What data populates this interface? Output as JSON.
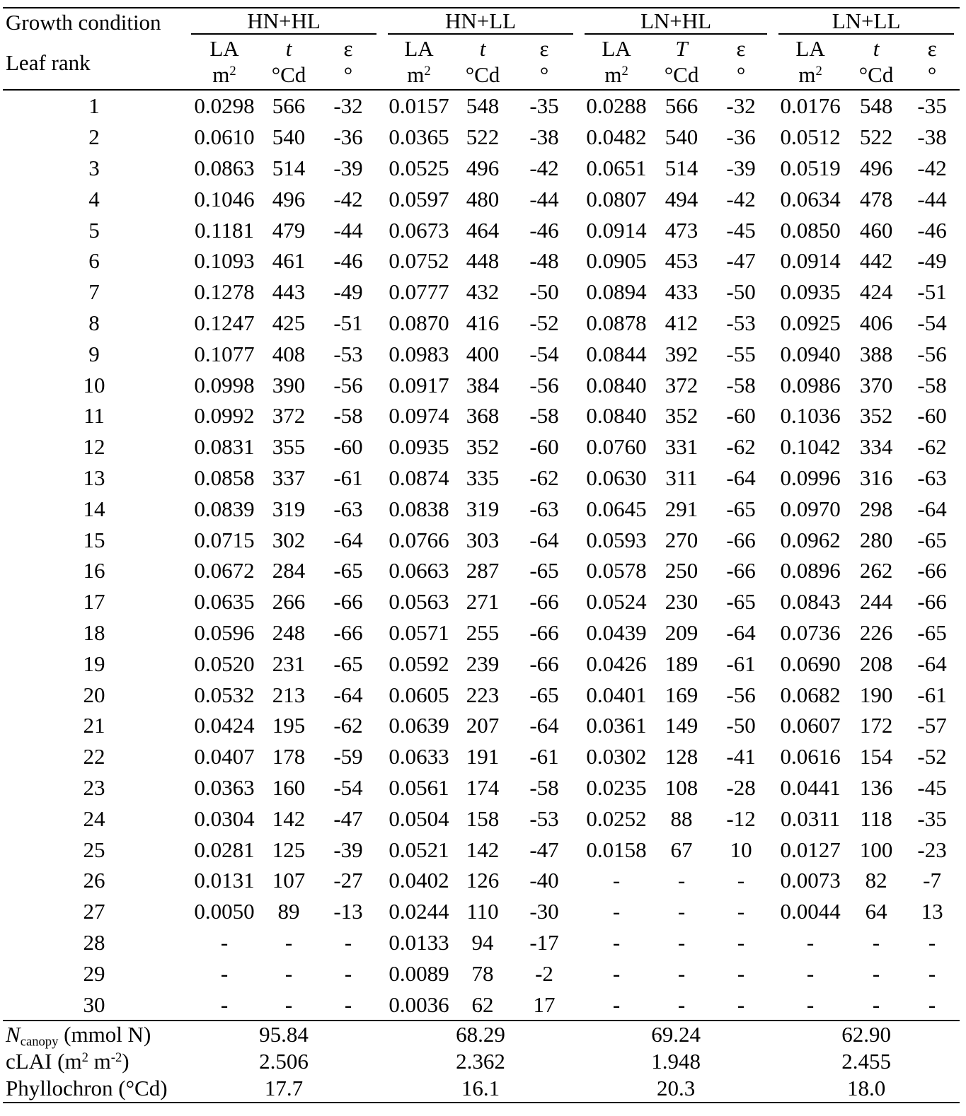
{
  "header": {
    "growth_condition_label": "Growth condition",
    "leaf_rank_label": "Leaf rank",
    "groups": [
      {
        "name": "HN+HL",
        "cols": [
          {
            "sym": "LA",
            "italic": false,
            "unit_base": "m",
            "unit_sup": "2"
          },
          {
            "sym": "t",
            "italic": true,
            "unit_base": "°Cd",
            "unit_sup": ""
          },
          {
            "sym": "ε",
            "italic": false,
            "unit_base": "°",
            "unit_sup": ""
          }
        ]
      },
      {
        "name": "HN+LL",
        "cols": [
          {
            "sym": "LA",
            "italic": false,
            "unit_base": "m",
            "unit_sup": "2"
          },
          {
            "sym": "t",
            "italic": true,
            "unit_base": "°Cd",
            "unit_sup": ""
          },
          {
            "sym": "ε",
            "italic": false,
            "unit_base": "°",
            "unit_sup": ""
          }
        ]
      },
      {
        "name": "LN+HL",
        "cols": [
          {
            "sym": "LA",
            "italic": false,
            "unit_base": "m",
            "unit_sup": "2"
          },
          {
            "sym": "T",
            "italic": true,
            "unit_base": "°Cd",
            "unit_sup": ""
          },
          {
            "sym": "ε",
            "italic": false,
            "unit_base": "°",
            "unit_sup": ""
          }
        ]
      },
      {
        "name": "LN+LL",
        "cols": [
          {
            "sym": "LA",
            "italic": false,
            "unit_base": "m",
            "unit_sup": "2"
          },
          {
            "sym": "t",
            "italic": true,
            "unit_base": "°Cd",
            "unit_sup": ""
          },
          {
            "sym": "ε",
            "italic": false,
            "unit_base": "°",
            "unit_sup": ""
          }
        ]
      }
    ]
  },
  "rows": [
    [
      "1",
      "0.0298",
      "566",
      "-32",
      "0.0157",
      "548",
      "-35",
      "0.0288",
      "566",
      "-32",
      "0.0176",
      "548",
      "-35"
    ],
    [
      "2",
      "0.0610",
      "540",
      "-36",
      "0.0365",
      "522",
      "-38",
      "0.0482",
      "540",
      "-36",
      "0.0512",
      "522",
      "-38"
    ],
    [
      "3",
      "0.0863",
      "514",
      "-39",
      "0.0525",
      "496",
      "-42",
      "0.0651",
      "514",
      "-39",
      "0.0519",
      "496",
      "-42"
    ],
    [
      "4",
      "0.1046",
      "496",
      "-42",
      "0.0597",
      "480",
      "-44",
      "0.0807",
      "494",
      "-42",
      "0.0634",
      "478",
      "-44"
    ],
    [
      "5",
      "0.1181",
      "479",
      "-44",
      "0.0673",
      "464",
      "-46",
      "0.0914",
      "473",
      "-45",
      "0.0850",
      "460",
      "-46"
    ],
    [
      "6",
      "0.1093",
      "461",
      "-46",
      "0.0752",
      "448",
      "-48",
      "0.0905",
      "453",
      "-47",
      "0.0914",
      "442",
      "-49"
    ],
    [
      "7",
      "0.1278",
      "443",
      "-49",
      "0.0777",
      "432",
      "-50",
      "0.0894",
      "433",
      "-50",
      "0.0935",
      "424",
      "-51"
    ],
    [
      "8",
      "0.1247",
      "425",
      "-51",
      "0.0870",
      "416",
      "-52",
      "0.0878",
      "412",
      "-53",
      "0.0925",
      "406",
      "-54"
    ],
    [
      "9",
      "0.1077",
      "408",
      "-53",
      "0.0983",
      "400",
      "-54",
      "0.0844",
      "392",
      "-55",
      "0.0940",
      "388",
      "-56"
    ],
    [
      "10",
      "0.0998",
      "390",
      "-56",
      "0.0917",
      "384",
      "-56",
      "0.0840",
      "372",
      "-58",
      "0.0986",
      "370",
      "-58"
    ],
    [
      "11",
      "0.0992",
      "372",
      "-58",
      "0.0974",
      "368",
      "-58",
      "0.0840",
      "352",
      "-60",
      "0.1036",
      "352",
      "-60"
    ],
    [
      "12",
      "0.0831",
      "355",
      "-60",
      "0.0935",
      "352",
      "-60",
      "0.0760",
      "331",
      "-62",
      "0.1042",
      "334",
      "-62"
    ],
    [
      "13",
      "0.0858",
      "337",
      "-61",
      "0.0874",
      "335",
      "-62",
      "0.0630",
      "311",
      "-64",
      "0.0996",
      "316",
      "-63"
    ],
    [
      "14",
      "0.0839",
      "319",
      "-63",
      "0.0838",
      "319",
      "-63",
      "0.0645",
      "291",
      "-65",
      "0.0970",
      "298",
      "-64"
    ],
    [
      "15",
      "0.0715",
      "302",
      "-64",
      "0.0766",
      "303",
      "-64",
      "0.0593",
      "270",
      "-66",
      "0.0962",
      "280",
      "-65"
    ],
    [
      "16",
      "0.0672",
      "284",
      "-65",
      "0.0663",
      "287",
      "-65",
      "0.0578",
      "250",
      "-66",
      "0.0896",
      "262",
      "-66"
    ],
    [
      "17",
      "0.0635",
      "266",
      "-66",
      "0.0563",
      "271",
      "-66",
      "0.0524",
      "230",
      "-65",
      "0.0843",
      "244",
      "-66"
    ],
    [
      "18",
      "0.0596",
      "248",
      "-66",
      "0.0571",
      "255",
      "-66",
      "0.0439",
      "209",
      "-64",
      "0.0736",
      "226",
      "-65"
    ],
    [
      "19",
      "0.0520",
      "231",
      "-65",
      "0.0592",
      "239",
      "-66",
      "0.0426",
      "189",
      "-61",
      "0.0690",
      "208",
      "-64"
    ],
    [
      "20",
      "0.0532",
      "213",
      "-64",
      "0.0605",
      "223",
      "-65",
      "0.0401",
      "169",
      "-56",
      "0.0682",
      "190",
      "-61"
    ],
    [
      "21",
      "0.0424",
      "195",
      "-62",
      "0.0639",
      "207",
      "-64",
      "0.0361",
      "149",
      "-50",
      "0.0607",
      "172",
      "-57"
    ],
    [
      "22",
      "0.0407",
      "178",
      "-59",
      "0.0633",
      "191",
      "-61",
      "0.0302",
      "128",
      "-41",
      "0.0616",
      "154",
      "-52"
    ],
    [
      "23",
      "0.0363",
      "160",
      "-54",
      "0.0561",
      "174",
      "-58",
      "0.0235",
      "108",
      "-28",
      "0.0441",
      "136",
      "-45"
    ],
    [
      "24",
      "0.0304",
      "142",
      "-47",
      "0.0504",
      "158",
      "-53",
      "0.0252",
      "88",
      "-12",
      "0.0311",
      "118",
      "-35"
    ],
    [
      "25",
      "0.0281",
      "125",
      "-39",
      "0.0521",
      "142",
      "-47",
      "0.0158",
      "67",
      "10",
      "0.0127",
      "100",
      "-23"
    ],
    [
      "26",
      "0.0131",
      "107",
      "-27",
      "0.0402",
      "126",
      "-40",
      "-",
      "-",
      "-",
      "0.0073",
      "82",
      "-7"
    ],
    [
      "27",
      "0.0050",
      "89",
      "-13",
      "0.0244",
      "110",
      "-30",
      "-",
      "-",
      "-",
      "0.0044",
      "64",
      "13"
    ],
    [
      "28",
      "-",
      "-",
      "-",
      "0.0133",
      "94",
      "-17",
      "-",
      "-",
      "-",
      "-",
      "-",
      "-"
    ],
    [
      "29",
      "-",
      "-",
      "-",
      "0.0089",
      "78",
      "-2",
      "-",
      "-",
      "-",
      "-",
      "-",
      "-"
    ],
    [
      "30",
      "-",
      "-",
      "-",
      "0.0036",
      "62",
      "17",
      "-",
      "-",
      "-",
      "-",
      "-",
      "-"
    ]
  ],
  "footer": {
    "ncanopy": {
      "label_sym": "N",
      "label_sub": "canopy",
      "label_rest": " (mmol N)",
      "values": [
        "95.84",
        "68.29",
        "69.24",
        "62.90"
      ]
    },
    "clai": {
      "label_pre": "cLAI (m",
      "sup1": "2",
      "label_mid": " m",
      "sup2": "-2",
      "label_post": ")",
      "values": [
        "2.506",
        "2.362",
        "1.948",
        "2.455"
      ]
    },
    "phyllochron": {
      "label": "Phyllochron (°Cd)",
      "values": [
        "17.7",
        "16.1",
        "20.3",
        "18.0"
      ]
    }
  }
}
